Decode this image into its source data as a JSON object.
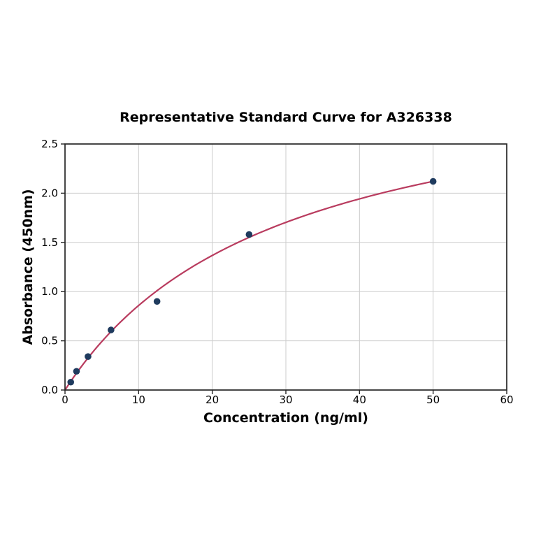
{
  "figure": {
    "background": "#ffffff"
  },
  "chart_data": {
    "type": "scatter",
    "title": "Representative Standard Curve for A326338",
    "xlabel": "Concentration (ng/ml)",
    "ylabel": "Absorbance (450nm)",
    "xlim": [
      0,
      60
    ],
    "ylim": [
      0,
      2.5
    ],
    "xticks": [
      0,
      10,
      20,
      30,
      40,
      50,
      60
    ],
    "xtick_labels": [
      "0",
      "10",
      "20",
      "30",
      "40",
      "50",
      "60"
    ],
    "yticks": [
      0,
      0.5,
      1,
      1.5,
      2,
      2.5
    ],
    "ytick_labels": [
      "0.0",
      "0.5",
      "1.0",
      "1.5",
      "2.0",
      "2.5"
    ],
    "grid": true,
    "legend": "none",
    "series": [
      {
        "name": "standard-points",
        "type": "scatter",
        "color": "#1f3b5e",
        "points": [
          {
            "x": 0.78,
            "y": 0.08
          },
          {
            "x": 1.56,
            "y": 0.19
          },
          {
            "x": 3.125,
            "y": 0.34
          },
          {
            "x": 6.25,
            "y": 0.61
          },
          {
            "x": 12.5,
            "y": 0.9
          },
          {
            "x": 25,
            "y": 1.58
          },
          {
            "x": 50,
            "y": 2.12
          }
        ]
      },
      {
        "name": "fit-curve",
        "type": "line",
        "color": "#b93c5f",
        "fit_model": "saturation y = a*x/(b+x)",
        "a": 3.35,
        "b": 29,
        "x_start": 0,
        "x_end": 50
      }
    ],
    "style": {
      "grid_color": "#cccccc",
      "spine_color": "#262626",
      "tick_color": "#262626",
      "text_color": "#000000",
      "background": "#ffffff",
      "marker_radius": 4.8,
      "curve_width": 2.2,
      "tick_font_size": 15,
      "tick_length": 6
    }
  }
}
